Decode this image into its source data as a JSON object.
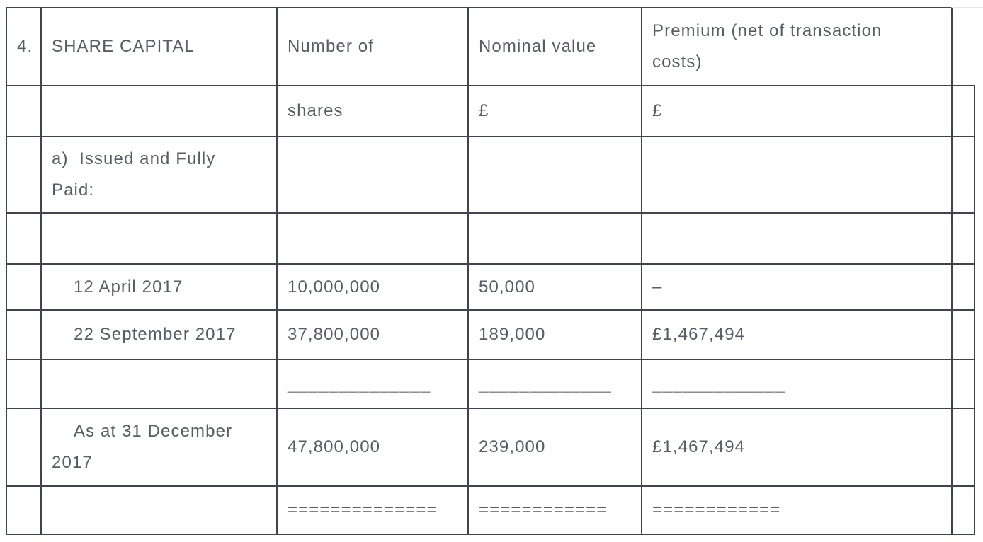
{
  "colors": {
    "text": "#575c66",
    "border": "#40444d",
    "rule_text": "#8b8e95",
    "faint_top_right_line": "#e5e5e7",
    "background": "#ffffff"
  },
  "table": {
    "rows": [
      {
        "name": "header-row",
        "cells": [
          {
            "name": "cell-section-number",
            "lines": [
              "4."
            ]
          },
          {
            "name": "cell-share-capital-heading",
            "lines": [
              "SHARE CAPITAL"
            ]
          },
          {
            "name": "cell-number-of-heading",
            "lines": [
              "Number of"
            ]
          },
          {
            "name": "cell-nominal-value-heading",
            "lines": [
              "Nominal value"
            ]
          },
          {
            "name": "cell-premium-heading",
            "lines": [
              "Premium (net of transaction",
              "costs)"
            ]
          },
          {
            "name": "cell-spacer",
            "variant": "hidden",
            "lines": []
          }
        ]
      },
      {
        "name": "units-row",
        "cells": [
          {
            "name": "cell-empty",
            "lines": []
          },
          {
            "name": "cell-empty",
            "lines": []
          },
          {
            "name": "cell-shares-unit",
            "lines": [
              "shares"
            ]
          },
          {
            "name": "cell-nominal-unit",
            "lines": [
              "£"
            ]
          },
          {
            "name": "cell-premium-unit",
            "lines": [
              "£"
            ]
          },
          {
            "name": "cell-empty",
            "lines": []
          }
        ]
      },
      {
        "name": "issued-fully-paid-row",
        "cells": [
          {
            "name": "cell-empty",
            "lines": []
          },
          {
            "name": "cell-issued-fully-paid-label",
            "lines": [
              "a)  Issued and Fully",
              "Paid:"
            ]
          },
          {
            "name": "cell-empty",
            "lines": []
          },
          {
            "name": "cell-empty",
            "lines": []
          },
          {
            "name": "cell-empty",
            "lines": []
          },
          {
            "name": "cell-empty",
            "lines": []
          }
        ]
      },
      {
        "name": "spacer-row",
        "cells": [
          {
            "name": "cell-empty",
            "lines": []
          },
          {
            "name": "cell-empty",
            "lines": []
          },
          {
            "name": "cell-empty",
            "lines": []
          },
          {
            "name": "cell-empty",
            "lines": []
          },
          {
            "name": "cell-empty",
            "lines": []
          },
          {
            "name": "cell-empty",
            "lines": []
          }
        ]
      },
      {
        "name": "row-12-april-2017",
        "cells": [
          {
            "name": "cell-empty",
            "lines": []
          },
          {
            "name": "cell-date-label",
            "variant": "indent",
            "lines": [
              "12 April 2017"
            ]
          },
          {
            "name": "cell-shares-value",
            "lines": [
              "10,000,000"
            ]
          },
          {
            "name": "cell-nominal-value",
            "lines": [
              "50,000"
            ]
          },
          {
            "name": "cell-premium-value",
            "lines": [
              "–"
            ]
          },
          {
            "name": "cell-empty",
            "lines": []
          }
        ]
      },
      {
        "name": "row-22-september-2017",
        "cells": [
          {
            "name": "cell-empty",
            "lines": []
          },
          {
            "name": "cell-date-label",
            "variant": "indent",
            "lines": [
              "22 September 2017"
            ]
          },
          {
            "name": "cell-shares-value",
            "lines": [
              "37,800,000"
            ]
          },
          {
            "name": "cell-nominal-value",
            "lines": [
              "189,000"
            ]
          },
          {
            "name": "cell-premium-value",
            "lines": [
              "£1,467,494"
            ]
          },
          {
            "name": "cell-empty",
            "lines": []
          }
        ]
      },
      {
        "name": "subtotal-rule-row",
        "cells": [
          {
            "name": "cell-empty",
            "lines": []
          },
          {
            "name": "cell-empty",
            "lines": []
          },
          {
            "name": "cell-single-rule",
            "variant": "rule",
            "lines": [
              "______________"
            ]
          },
          {
            "name": "cell-single-rule",
            "variant": "rule",
            "lines": [
              "_____________"
            ]
          },
          {
            "name": "cell-single-rule",
            "variant": "rule",
            "lines": [
              "_____________"
            ]
          },
          {
            "name": "cell-empty",
            "lines": []
          }
        ]
      },
      {
        "name": "row-as-at-31-december-2017",
        "cells": [
          {
            "name": "cell-empty",
            "lines": []
          },
          {
            "name": "cell-date-label",
            "variant": "indent",
            "lines": [
              "As at 31 December",
              "2017"
            ]
          },
          {
            "name": "cell-shares-value",
            "lines": [
              "47,800,000"
            ]
          },
          {
            "name": "cell-nominal-value",
            "lines": [
              "239,000"
            ]
          },
          {
            "name": "cell-premium-value",
            "lines": [
              "£1,467,494"
            ]
          },
          {
            "name": "cell-empty",
            "lines": []
          }
        ]
      },
      {
        "name": "total-double-rule-row",
        "cells": [
          {
            "name": "cell-empty",
            "lines": []
          },
          {
            "name": "cell-empty",
            "lines": []
          },
          {
            "name": "cell-double-rule",
            "lines": [
              "=============="
            ]
          },
          {
            "name": "cell-double-rule",
            "lines": [
              "============"
            ]
          },
          {
            "name": "cell-double-rule",
            "lines": [
              "============"
            ]
          },
          {
            "name": "cell-empty",
            "lines": []
          }
        ]
      }
    ]
  }
}
